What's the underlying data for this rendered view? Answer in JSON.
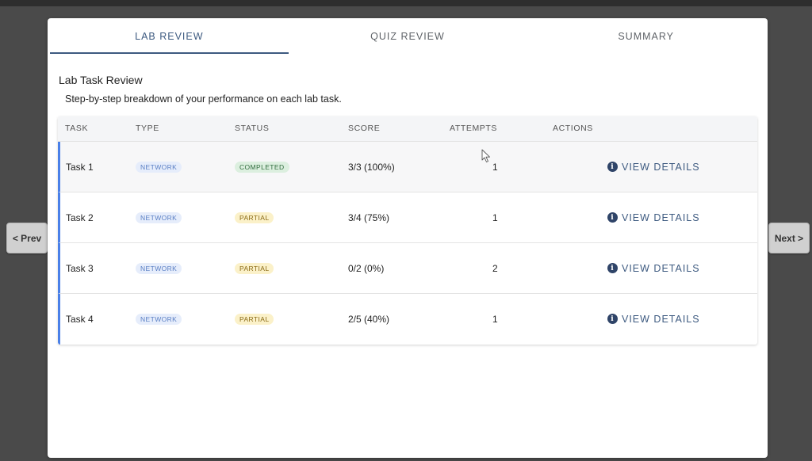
{
  "nav": {
    "prev_label": "< Prev",
    "next_label": "Next >"
  },
  "tabs": [
    {
      "label": "LAB REVIEW",
      "active": true
    },
    {
      "label": "QUIZ REVIEW",
      "active": false
    },
    {
      "label": "SUMMARY",
      "active": false
    }
  ],
  "section": {
    "title": "Lab Task Review",
    "subtitle": "Step-by-step breakdown of your performance on each lab task."
  },
  "table": {
    "headers": {
      "task": "TASK",
      "type": "TYPE",
      "status": "STATUS",
      "score": "SCORE",
      "attempts": "ATTEMPTS",
      "actions": "ACTIONS"
    },
    "rows": [
      {
        "task": "Task 1",
        "type": "NETWORK",
        "status": "COMPLETED",
        "score": "3/3 (100%)",
        "attempts": "1",
        "action": "VIEW DETAILS"
      },
      {
        "task": "Task 2",
        "type": "NETWORK",
        "status": "PARTIAL",
        "score": "3/4 (75%)",
        "attempts": "1",
        "action": "VIEW DETAILS"
      },
      {
        "task": "Task 3",
        "type": "NETWORK",
        "status": "PARTIAL",
        "score": "0/2 (0%)",
        "attempts": "2",
        "action": "VIEW DETAILS"
      },
      {
        "task": "Task 4",
        "type": "NETWORK",
        "status": "PARTIAL",
        "score": "2/5 (40%)",
        "attempts": "1",
        "action": "VIEW DETAILS"
      }
    ]
  },
  "icons": {
    "info": "info-icon",
    "cursor": "mouse-pointer-icon"
  },
  "colors": {
    "accent": "#3d5a80",
    "row_accent": "#4a80e8",
    "completed_bg": "#dcefdf",
    "partial_bg": "#fbf1c9",
    "type_bg": "#e6edfb"
  }
}
